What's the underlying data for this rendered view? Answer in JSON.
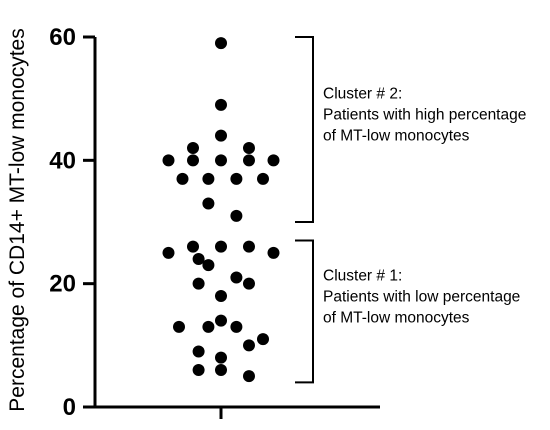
{
  "chart_data": {
    "type": "scatter",
    "title": "",
    "xlabel": "",
    "ylabel": "Percentage of CD14+ MT-low monocytes",
    "ylim": [
      0,
      60
    ],
    "yticks": [
      "0",
      "20",
      "40",
      "60"
    ],
    "grid": false,
    "points": [
      {
        "x": 0.0,
        "y": 59
      },
      {
        "x": 0.0,
        "y": 49
      },
      {
        "x": 0.0,
        "y": 44
      },
      {
        "x": -0.4,
        "y": 42
      },
      {
        "x": 0.4,
        "y": 42
      },
      {
        "x": -0.75,
        "y": 40
      },
      {
        "x": -0.4,
        "y": 40
      },
      {
        "x": 0.0,
        "y": 40
      },
      {
        "x": 0.4,
        "y": 40
      },
      {
        "x": 0.75,
        "y": 40
      },
      {
        "x": -0.55,
        "y": 37
      },
      {
        "x": -0.18,
        "y": 37
      },
      {
        "x": 0.22,
        "y": 37
      },
      {
        "x": 0.6,
        "y": 37
      },
      {
        "x": -0.18,
        "y": 33
      },
      {
        "x": 0.22,
        "y": 31
      },
      {
        "x": -0.4,
        "y": 26
      },
      {
        "x": 0.0,
        "y": 26
      },
      {
        "x": 0.4,
        "y": 26
      },
      {
        "x": -0.75,
        "y": 25
      },
      {
        "x": 0.75,
        "y": 25
      },
      {
        "x": -0.32,
        "y": 24
      },
      {
        "x": -0.18,
        "y": 23
      },
      {
        "x": 0.22,
        "y": 21
      },
      {
        "x": -0.32,
        "y": 20
      },
      {
        "x": 0.4,
        "y": 20
      },
      {
        "x": 0.0,
        "y": 18
      },
      {
        "x": 0.0,
        "y": 14
      },
      {
        "x": -0.6,
        "y": 13
      },
      {
        "x": -0.18,
        "y": 13
      },
      {
        "x": 0.22,
        "y": 13
      },
      {
        "x": 0.6,
        "y": 11
      },
      {
        "x": 0.4,
        "y": 10
      },
      {
        "x": -0.32,
        "y": 9
      },
      {
        "x": 0.0,
        "y": 8
      },
      {
        "x": -0.32,
        "y": 6
      },
      {
        "x": 0.0,
        "y": 6
      },
      {
        "x": 0.4,
        "y": 5
      }
    ],
    "annotations": [
      {
        "range": [
          30,
          60
        ],
        "lines": [
          "Cluster # 2:",
          "Patients with high percentage",
          "of MT-low monocytes"
        ]
      },
      {
        "range": [
          4,
          27
        ],
        "lines": [
          "Cluster # 1:",
          "Patients with low percentage",
          "of MT-low monocytes"
        ]
      }
    ]
  }
}
